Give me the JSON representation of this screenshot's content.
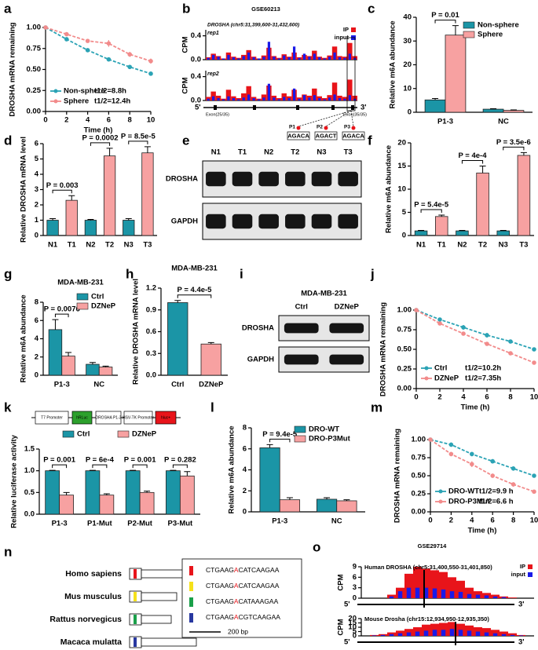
{
  "chart_data": [
    {
      "label": "a",
      "type": "line",
      "xlabel": "Time (h)",
      "ylabel": "DROSHA mRNA remaining",
      "x": [
        0,
        2,
        4,
        6,
        8,
        10
      ],
      "xlim": [
        0,
        10
      ],
      "xticks": [
        0,
        2,
        4,
        6,
        8,
        10
      ],
      "ylim": [
        0,
        1
      ],
      "yticks": [
        {
          "value": 0,
          "label": "0.00"
        },
        0.25,
        {
          "value": 0.5,
          "label": "0.50"
        },
        0.75,
        {
          "value": 1,
          "label": "1.00"
        }
      ],
      "legend": "lower left",
      "series": [
        {
          "name": "Non-sphere",
          "annotation": "t1/2=8.8h",
          "color": "#2ba3b5",
          "values": [
            1,
            0.86,
            0.73,
            0.62,
            0.53,
            0.45
          ],
          "errors": [
            0.01,
            0.01,
            0.02,
            0.02,
            0.01,
            0.01
          ]
        },
        {
          "name": "Sphere",
          "annotation": "t1/2=12.4h",
          "color": "#f28b8b",
          "values": [
            1,
            0.92,
            0.84,
            0.81,
            0.68,
            0.6
          ],
          "errors": [
            0.01,
            0.02,
            0.02,
            0.04,
            0.03,
            0.03
          ]
        }
      ]
    },
    {
      "label": "b",
      "type": "track",
      "title": "GSE60213",
      "gene_label": "DROSHA (chr5:31,399,600-31,432,600)",
      "ylabel": "CPM",
      "series": [
        {
          "name": "IP",
          "color": "#e8141a"
        },
        {
          "name": "input",
          "color": "#1a1ae8"
        }
      ],
      "tracks": [
        {
          "name": "rep1",
          "ylim": [
            0,
            0.5
          ],
          "yticks": [
            {
              "value": 0,
              "label": "0.0"
            },
            0.4
          ],
          "values": [
            [
              0.04,
              0.1,
              0.06,
              0.02,
              0.12,
              0.05,
              0.03,
              0.08,
              0.16,
              0.05,
              0.02,
              0.07,
              0.2,
              0.06,
              0.03,
              0.09,
              0.05,
              0.12,
              0.04,
              0.08,
              0.06,
              0.15,
              0.05,
              0.03,
              0.07,
              0.22,
              0.06,
              0.05,
              0.28,
              0.06
            ],
            [
              0.03,
              0.08,
              0.05,
              0.02,
              0.08,
              0.04,
              0.02,
              0.06,
              0.12,
              0.04,
              0.02,
              0.05,
              0.3,
              0.05,
              0.02,
              0.07,
              0.04,
              0.22,
              0.03,
              0.1,
              0.05,
              0.1,
              0.04,
              0.02,
              0.05,
              0.12,
              0.04,
              0.03,
              0.1,
              0.03
            ]
          ]
        },
        {
          "name": "rep2",
          "ylim": [
            0,
            0.5
          ],
          "yticks": [
            {
              "value": 0,
              "label": "0.0"
            },
            0.4
          ],
          "values": [
            [
              0.06,
              0.15,
              0.08,
              0.03,
              0.18,
              0.07,
              0.04,
              0.12,
              0.24,
              0.06,
              0.03,
              0.1,
              0.25,
              0.08,
              0.04,
              0.12,
              0.07,
              0.18,
              0.05,
              0.1,
              0.08,
              0.2,
              0.07,
              0.04,
              0.09,
              0.3,
              0.08,
              0.06,
              0.35,
              0.08
            ],
            [
              0.03,
              0.07,
              0.04,
              0.02,
              0.07,
              0.04,
              0.02,
              0.05,
              0.1,
              0.04,
              0.02,
              0.05,
              0.28,
              0.05,
              0.02,
              0.06,
              0.04,
              0.2,
              0.03,
              0.09,
              0.05,
              0.09,
              0.04,
              0.02,
              0.05,
              0.1,
              0.04,
              0.03,
              0.09,
              0.03
            ]
          ]
        }
      ],
      "five_prime": "5'",
      "three_prime": "3'",
      "exons": [
        "Exon(25/35)",
        "Exon(35/35)"
      ],
      "sites": [
        {
          "name": "P1",
          "motif": "AGACA"
        },
        {
          "name": "P2",
          "motif": "AGACT"
        },
        {
          "name": "P3",
          "motif": "AGACA"
        }
      ]
    },
    {
      "label": "c",
      "type": "bar",
      "ylabel": "Relative m6A abundance",
      "categories": [
        "P1-3",
        "NC"
      ],
      "ylim": [
        0,
        40
      ],
      "yticks": [
        0,
        10,
        20,
        30,
        40
      ],
      "legend": "upper right",
      "series": [
        {
          "name": "Non-sphere",
          "color": "#1b95a6",
          "values": [
            5.2,
            1.3
          ],
          "errors": [
            0.6,
            0.2
          ]
        },
        {
          "name": "Sphere",
          "color": "#f7a1a1",
          "values": [
            32.5,
            0.8
          ],
          "errors": [
            4,
            0.2
          ]
        }
      ],
      "annotations": [
        "P = 0.01"
      ]
    },
    {
      "label": "d",
      "type": "bar",
      "ylabel": "Relative DROSHA mRNA level",
      "categories": [
        "N1",
        "T1",
        "N2",
        "T2",
        "N3",
        "T3"
      ],
      "values": [
        1,
        2.3,
        1,
        5.2,
        1,
        5.4
      ],
      "errors": [
        0.1,
        0.3,
        0.05,
        0.5,
        0.1,
        0.4
      ],
      "colors": [
        "#1b95a6",
        "#f7a1a1",
        "#1b95a6",
        "#f7a1a1",
        "#1b95a6",
        "#f7a1a1"
      ],
      "ylim": [
        0,
        6
      ],
      "yticks": [
        0,
        1,
        2,
        3,
        4,
        5,
        6
      ],
      "annotations": [
        "P = 0.003",
        "P = 0.0002",
        "P = 8.5e-5"
      ]
    },
    {
      "label": "e",
      "type": "blot",
      "lanes": [
        "N1",
        "T1",
        "N2",
        "T2",
        "N3",
        "T3"
      ],
      "rows": [
        "DROSHA",
        "GAPDH"
      ]
    },
    {
      "label": "f",
      "type": "bar",
      "ylabel": "Relative m6A abundance",
      "categories": [
        "N1",
        "T1",
        "N2",
        "T2",
        "N3",
        "T3"
      ],
      "values": [
        1,
        4.1,
        1,
        13.5,
        1,
        17.3
      ],
      "errors": [
        0.1,
        0.3,
        0.1,
        1.5,
        0.1,
        0.6
      ],
      "colors": [
        "#1b95a6",
        "#f7a1a1",
        "#1b95a6",
        "#f7a1a1",
        "#1b95a6",
        "#f7a1a1"
      ],
      "ylim": [
        0,
        20
      ],
      "yticks": [
        0,
        5,
        10,
        15,
        20
      ],
      "annotations": [
        "P = 5.4e-5",
        "P = 4e-4",
        "P = 3.5e-6"
      ]
    },
    {
      "label": "g",
      "type": "bar",
      "title": "MDA-MB-231",
      "ylabel": "Relative m6A abundance",
      "categories": [
        "P1-3",
        "NC"
      ],
      "ylim": [
        0,
        8
      ],
      "yticks": [
        0,
        2,
        4,
        6,
        8
      ],
      "legend": "upper right",
      "series": [
        {
          "name": "Ctrl",
          "color": "#1b95a6",
          "values": [
            5,
            1.2
          ],
          "errors": [
            1.1,
            0.2
          ]
        },
        {
          "name": "DZNeP",
          "color": "#f7a1a1",
          "values": [
            2.1,
            0.9
          ],
          "errors": [
            0.4,
            0.1
          ]
        }
      ],
      "annotations": [
        "P = 0.0076"
      ]
    },
    {
      "label": "h",
      "type": "bar",
      "title": "MDA-MB-231",
      "ylabel": "Relative DROSHA mRNA level",
      "categories": [
        "Ctrl",
        "DZNeP"
      ],
      "values": [
        1,
        0.43
      ],
      "errors": [
        0.03,
        0.02
      ],
      "colors": [
        "#1b95a6",
        "#f7a1a1"
      ],
      "ylim": [
        0,
        1.2
      ],
      "yticks": [
        {
          "value": 0,
          "label": "0.0"
        },
        0.3,
        0.6,
        0.9,
        1.2
      ],
      "annotations": [
        "P = 4.4e-5"
      ]
    },
    {
      "label": "i",
      "type": "blot",
      "title": "MDA-MB-231",
      "lanes": [
        "Ctrl",
        "DZNeP"
      ],
      "rows": [
        "DROSHA",
        "GAPDH"
      ]
    },
    {
      "label": "j",
      "type": "line",
      "xlabel": "Time (h)",
      "ylabel": "DROSHA mRNA remaining",
      "x": [
        0,
        2,
        4,
        6,
        8,
        10
      ],
      "xlim": [
        0,
        10
      ],
      "xticks": [
        0,
        2,
        4,
        6,
        8,
        10
      ],
      "ylim": [
        0,
        1
      ],
      "yticks": [
        {
          "value": 0,
          "label": "0.00"
        },
        0.25,
        {
          "value": 0.5,
          "label": "0.50"
        },
        0.75,
        {
          "value": 1,
          "label": "1.00"
        }
      ],
      "legend": "lower left",
      "series": [
        {
          "name": "Ctrl",
          "annotation": "t1/2=10.2h",
          "color": "#2ba3b5",
          "values": [
            1,
            0.88,
            0.78,
            0.68,
            0.6,
            0.5
          ],
          "errors": [
            0.01,
            0.02,
            0.03,
            0.03,
            0.02,
            0.01
          ]
        },
        {
          "name": "DZNeP",
          "annotation": "t1/2=7.35h",
          "color": "#f28b8b",
          "values": [
            1,
            0.83,
            0.7,
            0.57,
            0.45,
            0.33
          ],
          "errors": [
            0.01,
            0.02,
            0.02,
            0.02,
            0.02,
            0.01
          ]
        }
      ]
    },
    {
      "label": "k",
      "type": "bar",
      "construct": [
        "T7 Promoter",
        "hRLuc",
        "DROSHA P1-3",
        "HSV-TK Promoter",
        "hluc+"
      ],
      "ylabel": "Relative luciferase activity",
      "categories": [
        "P1-3",
        "P1-Mut",
        "P2-Mut",
        "P3-Mut"
      ],
      "ylim": [
        0,
        1.5
      ],
      "yticks": [
        {
          "value": 0,
          "label": "0.0"
        },
        0.5,
        {
          "value": 1,
          "label": "1.0"
        },
        1.5
      ],
      "legend": "top",
      "series": [
        {
          "name": "Ctrl",
          "color": "#1b95a6",
          "values": [
            1,
            1,
            1,
            1
          ],
          "errors": [
            0.01,
            0.01,
            0.01,
            0.01
          ]
        },
        {
          "name": "DZNeP",
          "color": "#f7a1a1",
          "values": [
            0.44,
            0.44,
            0.5,
            0.88
          ],
          "errors": [
            0.06,
            0.03,
            0.03,
            0.1
          ]
        }
      ],
      "annotations": [
        "P = 0.001",
        "P = 6e-4",
        "P = 0.001",
        "P = 0.282"
      ]
    },
    {
      "label": "l",
      "type": "bar",
      "ylabel": "Relative m6A abundance",
      "categories": [
        "P1-3",
        "NC"
      ],
      "ylim": [
        0,
        8
      ],
      "yticks": [
        0,
        2,
        4,
        6,
        8
      ],
      "legend": "upper right",
      "series": [
        {
          "name": "DRO-WT",
          "color": "#1b95a6",
          "values": [
            6.1,
            1.2
          ],
          "errors": [
            0.3,
            0.15
          ]
        },
        {
          "name": "DRO-P3Mut",
          "color": "#f7a1a1",
          "values": [
            1.15,
            1.05
          ],
          "errors": [
            0.2,
            0.1
          ]
        }
      ],
      "annotations": [
        "P = 9.4e-5"
      ]
    },
    {
      "label": "m",
      "type": "line",
      "xlabel": "Time (h)",
      "ylabel": "DROSHA mRNA remaining",
      "x": [
        0,
        2,
        4,
        6,
        8,
        10
      ],
      "xlim": [
        0,
        10
      ],
      "xticks": [
        0,
        2,
        4,
        6,
        8,
        10
      ],
      "ylim": [
        0,
        1
      ],
      "yticks": [
        {
          "value": 0,
          "label": "0.00"
        },
        0.25,
        {
          "value": 0.5,
          "label": "0.50"
        },
        0.75,
        {
          "value": 1,
          "label": "1.00"
        }
      ],
      "legend": "lower left",
      "series": [
        {
          "name": "DRO-WT",
          "annotation": "t1/2=9.9 h",
          "color": "#2ba3b5",
          "values": [
            1,
            0.93,
            0.8,
            0.7,
            0.6,
            0.5
          ],
          "errors": [
            0.01,
            0.03,
            0.03,
            0.03,
            0.03,
            0.02
          ]
        },
        {
          "name": "DRO-P3Mut",
          "annotation": "t1/2=6.6 h",
          "color": "#f28b8b",
          "values": [
            1,
            0.8,
            0.66,
            0.5,
            0.38,
            0.28
          ],
          "errors": [
            0.01,
            0.03,
            0.04,
            0.03,
            0.03,
            0.02
          ]
        }
      ]
    },
    {
      "label": "o",
      "type": "track",
      "title": "GSE29714",
      "ylabel": "CPM",
      "series": [
        {
          "name": "IP",
          "color": "#e8141a"
        },
        {
          "name": "input",
          "color": "#1a1ae8"
        }
      ],
      "tracks": [
        {
          "name": "Human DROSHA (chr5:31,400,550-31,401,850)",
          "ylim": [
            0,
            9
          ],
          "yticks": [
            0,
            3,
            6,
            9
          ],
          "values": [
            [
              0,
              0,
              0,
              1,
              3,
              7,
              9,
              8.5,
              8,
              7.5,
              6,
              5,
              3,
              2,
              1.5,
              1,
              0.5,
              0.2,
              0,
              0
            ],
            [
              0,
              0,
              0,
              0.5,
              2,
              3,
              3,
              3,
              2.8,
              2.5,
              2,
              1.8,
              1.2,
              1,
              0.8,
              0.5,
              0.3,
              0,
              0,
              0
            ]
          ]
        },
        {
          "name": "Mouse Drosha (chr15:12,934,950-12,935,350)",
          "ylim": [
            0,
            20
          ],
          "yticks": [
            0,
            5,
            10,
            15,
            20
          ],
          "values": [
            [
              0,
              1,
              2,
              4,
              6,
              8,
              10,
              13,
              14,
              15,
              16,
              14,
              12,
              10,
              9,
              7,
              5,
              3,
              1,
              0
            ],
            [
              0,
              0.5,
              1,
              2,
              3,
              4,
              5,
              6,
              7,
              7,
              8,
              7,
              6,
              5,
              4,
              3,
              2,
              1,
              0.5,
              0
            ]
          ]
        }
      ],
      "five_prime": "5'",
      "three_prime": "3'"
    }
  ],
  "figure_n": {
    "label": "n",
    "species": [
      {
        "name": "Homo sapiens",
        "color": "#e8141a"
      },
      {
        "name": "Mus musculus",
        "color": "#f5e11a"
      },
      {
        "name": "Rattus norvegicus",
        "color": "#1aa04a"
      },
      {
        "name": "Macaca mulatta",
        "color": "#2838a0"
      }
    ],
    "sequences": [
      {
        "before": "CTGAAG",
        "site": "A",
        "after": "CATCAAGAA"
      },
      {
        "before": "CTGAAG",
        "site": "A",
        "after": "CATCAAGAA"
      },
      {
        "before": "CTGAAG",
        "site": "A",
        "after": "CATAAAGAA"
      },
      {
        "before": "CTGAAG",
        "site": "A",
        "after": "CGTCAAGAA"
      }
    ],
    "scale": "200 bp"
  }
}
